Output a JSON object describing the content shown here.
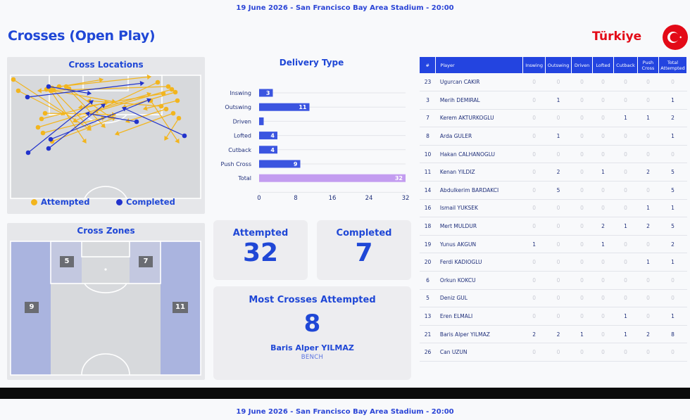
{
  "header": {
    "match_line": "19 June 2026 - San Francisco Bay Area Stadium - 20:00"
  },
  "page_title": "Crosses (Open Play)",
  "team": {
    "name": "Türkiye",
    "flag_icon": "turkey-flag-icon",
    "flag_color": "#e30a17"
  },
  "colors": {
    "accent": "#1f47d6",
    "attempted": "#f2b51e",
    "completed": "#2233cc",
    "total_bar": "#c39cf0",
    "bar": "#3b55e0"
  },
  "cross_locations": {
    "title": "Cross Locations",
    "legend_attempted": "Attempted",
    "legend_completed": "Completed"
  },
  "cross_zones": {
    "title": "Cross Zones",
    "zones": {
      "top_left": "5",
      "top_right": "7",
      "wide_left": "9",
      "wide_right": "11"
    }
  },
  "chart_data": {
    "type": "bar",
    "title": "Delivery Type",
    "orientation": "horizontal",
    "categories": [
      "Inswing",
      "Outswing",
      "Driven",
      "Lofted",
      "Cutback",
      "Push Cross",
      "Total"
    ],
    "values": [
      3,
      11,
      1,
      4,
      4,
      9,
      32
    ],
    "data_labels": [
      "3",
      "11",
      "",
      "4",
      "4",
      "9",
      "32"
    ],
    "xticks": [
      "0",
      "8",
      "16",
      "24",
      "32"
    ],
    "xlim": [
      0,
      32
    ],
    "grid": true
  },
  "stats": {
    "attempted_label": "Attempted",
    "attempted_value": "32",
    "completed_label": "Completed",
    "completed_value": "7",
    "most_label": "Most Crosses Attempted",
    "most_value": "8",
    "most_player": "Baris Alper YILMAZ",
    "most_role": "BENCH"
  },
  "table": {
    "headers": [
      "#",
      "Player",
      "Inswing",
      "Outswing",
      "Driven",
      "Lofted",
      "Cutback",
      "Push Cross",
      "Total Attempted"
    ],
    "rows": [
      [
        "23",
        "Ugurcan CAKIR",
        "0",
        "0",
        "0",
        "0",
        "0",
        "0",
        "0"
      ],
      [
        "3",
        "Merih DEMIRAL",
        "0",
        "1",
        "0",
        "0",
        "0",
        "0",
        "1"
      ],
      [
        "7",
        "Kerem AKTURKOGLU",
        "0",
        "0",
        "0",
        "0",
        "1",
        "1",
        "2"
      ],
      [
        "8",
        "Arda GULER",
        "0",
        "1",
        "0",
        "0",
        "0",
        "0",
        "1"
      ],
      [
        "10",
        "Hakan CALHANOGLU",
        "0",
        "0",
        "0",
        "0",
        "0",
        "0",
        "0"
      ],
      [
        "11",
        "Kenan YILDIZ",
        "0",
        "2",
        "0",
        "1",
        "0",
        "2",
        "5"
      ],
      [
        "14",
        "Abdulkerim BARDAKCI",
        "0",
        "5",
        "0",
        "0",
        "0",
        "0",
        "5"
      ],
      [
        "16",
        "Ismail YUKSEK",
        "0",
        "0",
        "0",
        "0",
        "0",
        "1",
        "1"
      ],
      [
        "18",
        "Mert MULDUR",
        "0",
        "0",
        "0",
        "2",
        "1",
        "2",
        "5"
      ],
      [
        "19",
        "Yunus AKGUN",
        "1",
        "0",
        "0",
        "1",
        "0",
        "0",
        "2"
      ],
      [
        "20",
        "Ferdi KADIOGLU",
        "0",
        "0",
        "0",
        "0",
        "0",
        "1",
        "1"
      ],
      [
        "6",
        "Orkun KOKCU",
        "0",
        "0",
        "0",
        "0",
        "0",
        "0",
        "0"
      ],
      [
        "5",
        "Deniz GUL",
        "0",
        "0",
        "0",
        "0",
        "0",
        "0",
        "0"
      ],
      [
        "13",
        "Eren ELMALI",
        "0",
        "0",
        "0",
        "0",
        "1",
        "0",
        "1"
      ],
      [
        "21",
        "Baris Alper YILMAZ",
        "2",
        "2",
        "1",
        "0",
        "1",
        "2",
        "8"
      ],
      [
        "26",
        "Can UZUN",
        "0",
        "0",
        "0",
        "0",
        "0",
        "0",
        "0"
      ]
    ]
  },
  "footer": {
    "match_line": "19 June 2026 - San Francisco Bay Area Stadium - 20:00"
  }
}
